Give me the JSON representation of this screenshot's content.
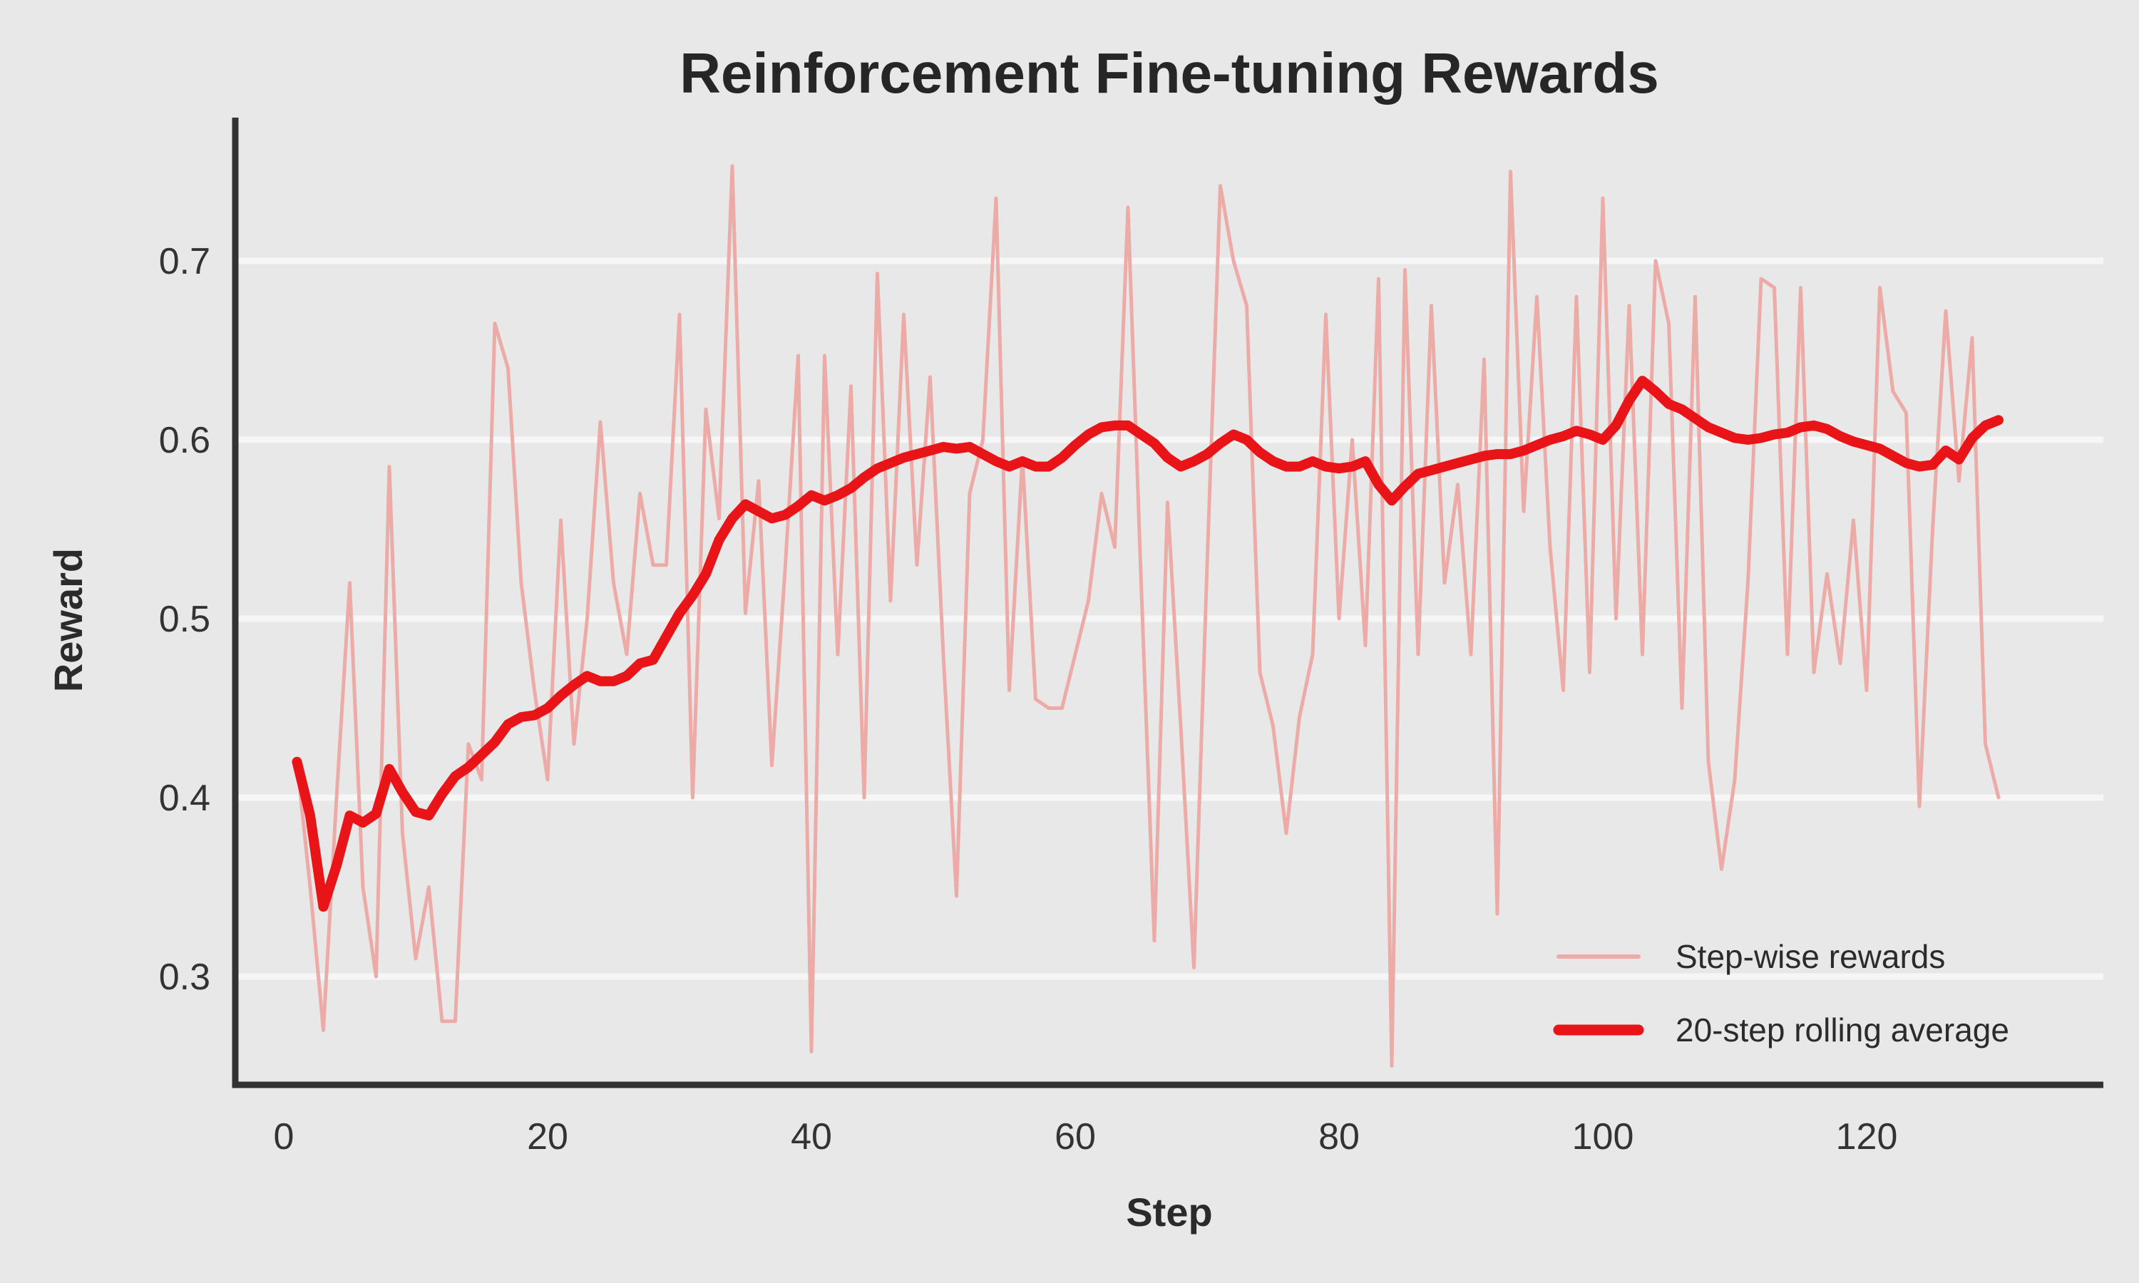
{
  "title": "Reinforcement Fine-tuning Rewards",
  "colors": {
    "background": "#e9e8e8",
    "gridline": "#f7f6f6",
    "spine": "#333333",
    "stepwise_line": "#ecaba6",
    "rolling_line": "#e81417",
    "text": "#2b2b2b"
  },
  "legend": {
    "entries": [
      {
        "label": "Step-wise rewards"
      },
      {
        "label": "20-step rolling average"
      }
    ]
  },
  "chart_data": {
    "type": "line",
    "title": "Reinforcement Fine-tuning Rewards",
    "xlabel": "Step",
    "ylabel": "Reward",
    "x_ticks": [
      0,
      20,
      40,
      60,
      80,
      100,
      120
    ],
    "y_ticks": [
      0.3,
      0.4,
      0.5,
      0.6,
      0.7
    ],
    "xlim": [
      -3.7,
      138
    ],
    "ylim": [
      0.24,
      0.78
    ],
    "grid": "horizontal",
    "legend_position": "lower right",
    "x_start": 1,
    "x_step": 1,
    "series": [
      {
        "name": "Step-wise rewards",
        "color": "#ecaba6",
        "width": 5,
        "values": [
          0.42,
          0.35,
          0.27,
          0.4,
          0.52,
          0.35,
          0.3,
          0.585,
          0.38,
          0.31,
          0.35,
          0.275,
          0.275,
          0.43,
          0.41,
          0.665,
          0.64,
          0.52,
          0.46,
          0.41,
          0.555,
          0.43,
          0.5,
          0.61,
          0.52,
          0.48,
          0.57,
          0.53,
          0.53,
          0.67,
          0.4,
          0.617,
          0.556,
          0.753,
          0.503,
          0.577,
          0.418,
          0.527,
          0.647,
          0.258,
          0.647,
          0.48,
          0.63,
          0.4,
          0.693,
          0.51,
          0.67,
          0.53,
          0.635,
          0.48,
          0.345,
          0.57,
          0.6,
          0.735,
          0.46,
          0.59,
          0.455,
          0.45,
          0.45,
          0.48,
          0.51,
          0.57,
          0.54,
          0.73,
          0.52,
          0.32,
          0.565,
          0.44,
          0.305,
          0.53,
          0.742,
          0.7,
          0.675,
          0.47,
          0.44,
          0.38,
          0.445,
          0.48,
          0.67,
          0.5,
          0.6,
          0.485,
          0.69,
          0.25,
          0.695,
          0.48,
          0.675,
          0.52,
          0.575,
          0.48,
          0.645,
          0.335,
          0.75,
          0.56,
          0.68,
          0.54,
          0.46,
          0.68,
          0.47,
          0.735,
          0.5,
          0.675,
          0.48,
          0.7,
          0.665,
          0.45,
          0.68,
          0.42,
          0.36,
          0.41,
          0.52,
          0.69,
          0.685,
          0.48,
          0.685,
          0.47,
          0.525,
          0.475,
          0.555,
          0.46,
          0.685,
          0.627,
          0.615,
          0.395,
          0.55,
          0.672,
          0.577,
          0.657,
          0.43,
          0.4
        ]
      },
      {
        "name": "20-step rolling average",
        "color": "#e81417",
        "width": 14,
        "values": [
          0.42,
          0.39,
          0.339,
          0.362,
          0.39,
          0.386,
          0.391,
          0.416,
          0.403,
          0.392,
          0.39,
          0.402,
          0.412,
          0.417,
          0.424,
          0.431,
          0.441,
          0.445,
          0.446,
          0.45,
          0.457,
          0.463,
          0.468,
          0.465,
          0.465,
          0.468,
          0.475,
          0.477,
          0.49,
          0.503,
          0.513,
          0.525,
          0.544,
          0.556,
          0.564,
          0.56,
          0.556,
          0.558,
          0.563,
          0.569,
          0.566,
          0.569,
          0.573,
          0.579,
          0.584,
          0.587,
          0.59,
          0.592,
          0.594,
          0.596,
          0.595,
          0.596,
          0.592,
          0.588,
          0.585,
          0.588,
          0.585,
          0.585,
          0.59,
          0.597,
          0.603,
          0.607,
          0.608,
          0.608,
          0.603,
          0.598,
          0.59,
          0.585,
          0.588,
          0.592,
          0.598,
          0.603,
          0.6,
          0.593,
          0.588,
          0.585,
          0.585,
          0.588,
          0.585,
          0.584,
          0.585,
          0.588,
          0.575,
          0.566,
          0.574,
          0.581,
          0.583,
          0.585,
          0.587,
          0.589,
          0.591,
          0.592,
          0.592,
          0.594,
          0.597,
          0.6,
          0.602,
          0.605,
          0.603,
          0.6,
          0.608,
          0.622,
          0.633,
          0.627,
          0.62,
          0.617,
          0.612,
          0.607,
          0.604,
          0.601,
          0.6,
          0.601,
          0.603,
          0.604,
          0.607,
          0.608,
          0.606,
          0.602,
          0.599,
          0.597,
          0.595,
          0.591,
          0.587,
          0.585,
          0.586,
          0.594,
          0.589,
          0.601,
          0.608,
          0.611
        ]
      }
    ]
  }
}
